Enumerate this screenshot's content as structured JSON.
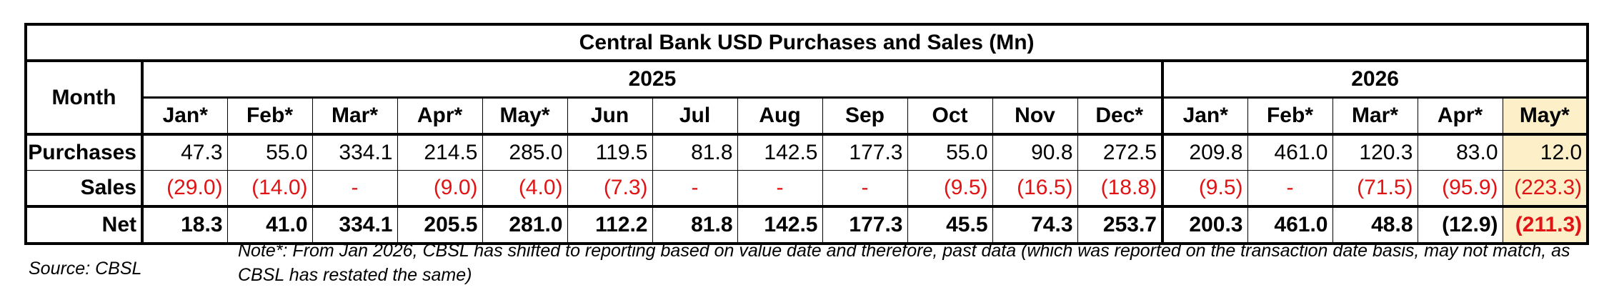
{
  "table": {
    "title": "Central Bank USD Purchases and Sales (Mn)",
    "month_header": "Month",
    "years": [
      {
        "label": "2025",
        "months": [
          "Jan*",
          "Feb*",
          "Mar*",
          "Apr*",
          "May*",
          "Jun",
          "Jul",
          "Aug",
          "Sep",
          "Oct",
          "Nov",
          "Dec*"
        ]
      },
      {
        "label": "2026",
        "months": [
          "Jan*",
          "Feb*",
          "Mar*",
          "Apr*",
          "May*"
        ]
      }
    ],
    "rows": [
      {
        "label": "Purchases",
        "values": [
          "47.3",
          "55.0",
          "334.1",
          "214.5",
          "285.0",
          "119.5",
          "81.8",
          "142.5",
          "177.3",
          "55.0",
          "90.8",
          "272.5",
          "209.8",
          "461.0",
          "120.3",
          "83.0",
          "12.0"
        ]
      },
      {
        "label": "Sales",
        "values": [
          "(29.0)",
          "(14.0)",
          "-",
          "(9.0)",
          "(4.0)",
          "(7.3)",
          "-",
          "-",
          "-",
          "(9.5)",
          "(16.5)",
          "(18.8)",
          "(9.5)",
          "-",
          "(71.5)",
          "(95.9)",
          "(223.3)"
        ]
      },
      {
        "label": "Net",
        "values": [
          "18.3",
          "41.0",
          "334.1",
          "205.5",
          "281.0",
          "112.2",
          "81.8",
          "142.5",
          "177.3",
          "45.5",
          "74.3",
          "253.7",
          "200.3",
          "461.0",
          "48.8",
          "(12.9)",
          "(211.3)"
        ]
      }
    ],
    "highlight_color": "#fdf0c9",
    "negative_color": "#e01414"
  },
  "footer": {
    "source": "Source: CBSL",
    "note": "Note*: From Jan 2026, CBSL has shifted to reporting based on value date and therefore, past data (which was reported on the transaction date basis, may not match, as CBSL has restated the same)"
  }
}
